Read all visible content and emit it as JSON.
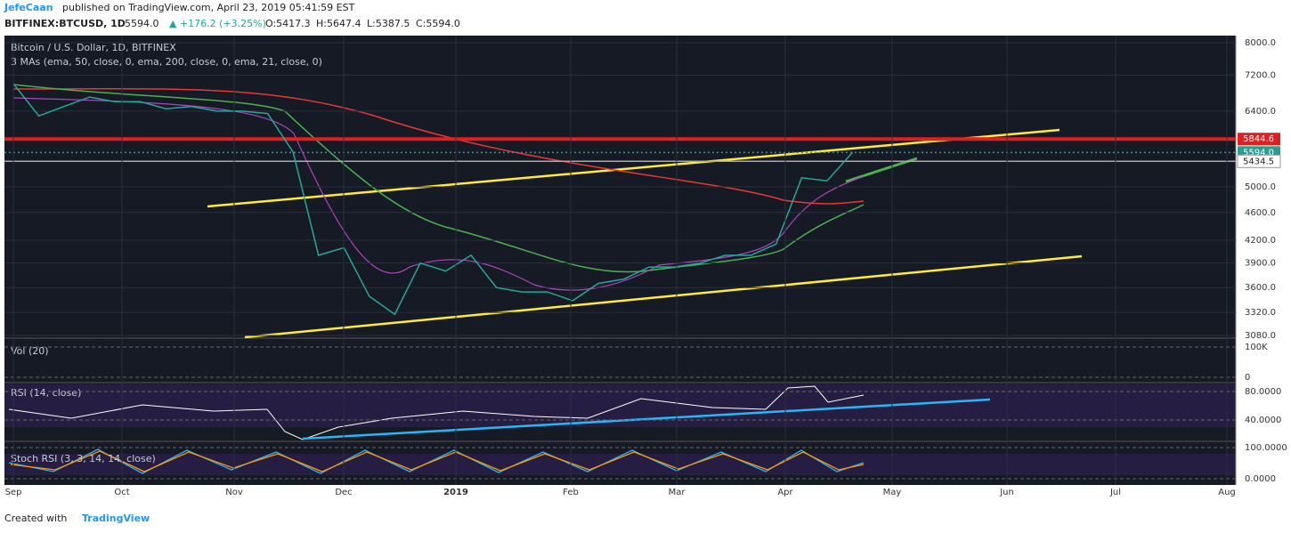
{
  "header": {
    "author": "JefeCaan",
    "published": "published on TradingView.com, April 23, 2019 05:41:59 EST",
    "symbol": "BITFINEX:BTCUSD, 1D",
    "last": "5594.0",
    "change": "▲ +176.2 (+3.25%)",
    "open": "O:5417.3",
    "high": "H:5647.4",
    "low": "L:5387.5",
    "close": "C:5594.0"
  },
  "legends": {
    "main": "Bitcoin / U.S. Dollar, 1D, BITFINEX",
    "mas": "3 MAs (ema, 50, close, 0, ema, 200, close, 0, ema, 21, close, 0)",
    "volume": "Vol (20)",
    "rsi": "RSI (14, close)",
    "stoch": "Stoch RSI (3, 3, 14, 14, close)"
  },
  "price": {
    "yticks": [
      {
        "value": 8000,
        "label": "8000.0"
      },
      {
        "value": 7200,
        "label": "7200.0"
      },
      {
        "value": 6400,
        "label": "6400.0"
      },
      {
        "value": 5000,
        "label": "5000.0"
      },
      {
        "value": 4600,
        "label": "4600.0"
      },
      {
        "value": 4200,
        "label": "4200.0"
      },
      {
        "value": 3900,
        "label": "3900.0"
      },
      {
        "value": 3600,
        "label": "3600.0"
      },
      {
        "value": 3320,
        "label": "3320.0"
      },
      {
        "value": 3080,
        "label": "3080.0"
      }
    ],
    "levels": [
      {
        "value": 5844.6,
        "label": "5844.6",
        "color": "#e02020"
      },
      {
        "value": 5594,
        "label": "5594.0",
        "color": "#2a9d8f"
      },
      {
        "value": 5434.5,
        "label": "5434.5",
        "color": "#ffffff"
      }
    ],
    "closes": [
      7000,
      6300,
      6500,
      6700,
      6600,
      6600,
      6450,
      6500,
      6400,
      6400,
      6350,
      5600,
      4000,
      4100,
      3500,
      3300,
      3900,
      3800,
      4000,
      3600,
      3550,
      3550,
      3450,
      3650,
      3700,
      3850,
      3850,
      3900,
      4000,
      4000,
      4150,
      5150,
      5100,
      5594
    ]
  },
  "volume_ticks": [
    "100K",
    "0"
  ],
  "rsi_ticks": [
    "80.0000",
    "40.0000"
  ],
  "stoch_ticks": [
    "100.0000",
    "0.0000"
  ],
  "x_labels": [
    "Sep",
    "Oct",
    "Nov",
    "Dec",
    "2019",
    "Feb",
    "Mar",
    "Apr",
    "May",
    "Jun",
    "Jul",
    "Aug"
  ],
  "footer": {
    "created": "Created with",
    "brand": "TradingView"
  }
}
